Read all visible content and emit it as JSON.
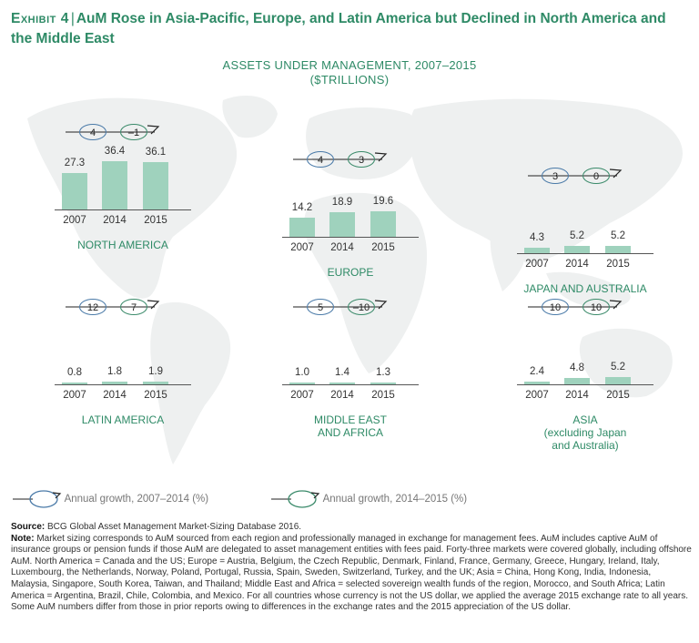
{
  "exhibit": {
    "label": "Exhibit 4",
    "title": "AuM Rose in Asia-Pacific, Europe, and Latin America but Declined in North America and the Middle East"
  },
  "chart_title": {
    "line1": "ASSETS UNDER MANAGEMENT, 2007–2015",
    "line2": "($TRILLIONS)"
  },
  "chart_data": {
    "type": "bar",
    "title": "Assets under management, 2007–2015 ($trillions)",
    "categories": [
      "2007",
      "2014",
      "2015"
    ],
    "panels": [
      {
        "region": "NORTH AMERICA",
        "values": [
          27.3,
          36.4,
          36.1
        ],
        "value_labels": [
          "27.3",
          "36.4",
          "36.1"
        ],
        "growth_2007_2014": "4",
        "growth_2014_2015": "–1"
      },
      {
        "region": "EUROPE",
        "values": [
          14.2,
          18.9,
          19.6
        ],
        "value_labels": [
          "14.2",
          "18.9",
          "19.6"
        ],
        "growth_2007_2014": "4",
        "growth_2014_2015": "3"
      },
      {
        "region": "JAPAN AND AUSTRALIA",
        "values": [
          4.3,
          5.2,
          5.2
        ],
        "value_labels": [
          "4.3",
          "5.2",
          "5.2"
        ],
        "growth_2007_2014": "3",
        "growth_2014_2015": "0"
      },
      {
        "region": "LATIN AMERICA",
        "values": [
          0.8,
          1.8,
          1.9
        ],
        "value_labels": [
          "0.8",
          "1.8",
          "1.9"
        ],
        "growth_2007_2014": "12",
        "growth_2014_2015": "7"
      },
      {
        "region": "MIDDLE EAST AND AFRICA",
        "region_lines": [
          "MIDDLE EAST",
          "AND AFRICA"
        ],
        "values": [
          1.0,
          1.4,
          1.3
        ],
        "value_labels": [
          "1.0",
          "1.4",
          "1.3"
        ],
        "growth_2007_2014": "5",
        "growth_2014_2015": "–10"
      },
      {
        "region": "ASIA (excluding Japan and Australia)",
        "region_lines": [
          "ASIA",
          "(excluding Japan",
          "and Australia)"
        ],
        "values": [
          2.4,
          4.8,
          5.2
        ],
        "value_labels": [
          "2.4",
          "4.8",
          "5.2"
        ],
        "growth_2007_2014": "10",
        "growth_2014_2015": "10"
      }
    ],
    "ylim": [
      0,
      40
    ],
    "bar_color": "#9fd2bd",
    "legend": [
      "Annual growth, 2007–2014 (%)",
      "Annual growth, 2014–2015 (%)"
    ]
  },
  "colors": {
    "accent": "#2e8a66",
    "growth1": "#4a7aa8",
    "growth2": "#3a8a6a",
    "map": "#eef0f0"
  },
  "notes": {
    "source_label": "Source:",
    "source": "BCG Global Asset Management Market-Sizing Database 2016.",
    "note_label": "Note:",
    "note": "Market sizing corresponds to AuM sourced from each region and professionally managed in exchange for management fees. AuM includes captive AuM of insurance groups or pension funds if those AuM are delegated to asset management entities with fees paid. Forty-three markets were covered globally, including offshore AuM. North America = Canada and the US; Europe = Austria, Belgium, the Czech Republic, Denmark, Finland, France, Germany, Greece, Hungary, Ireland, Italy, Luxembourg, the Netherlands, Norway, Poland, Portugal, Russia, Spain, Sweden, Switzerland, Turkey, and the UK; Asia = China, Hong Kong, India, Indonesia, Malaysia, Singapore, South Korea, Taiwan, and Thailand; Middle East and Africa = selected sovereign wealth funds of the region, Morocco, and South Africa; Latin America = Argentina, Brazil, Chile, Colombia, and Mexico. For all countries whose currency is not the US dollar, we applied the average 2015 exchange rate to all years. Some AuM numbers differ from those in prior reports owing to differences in the exchange rates and the 2015 appreciation of the US dollar."
  }
}
